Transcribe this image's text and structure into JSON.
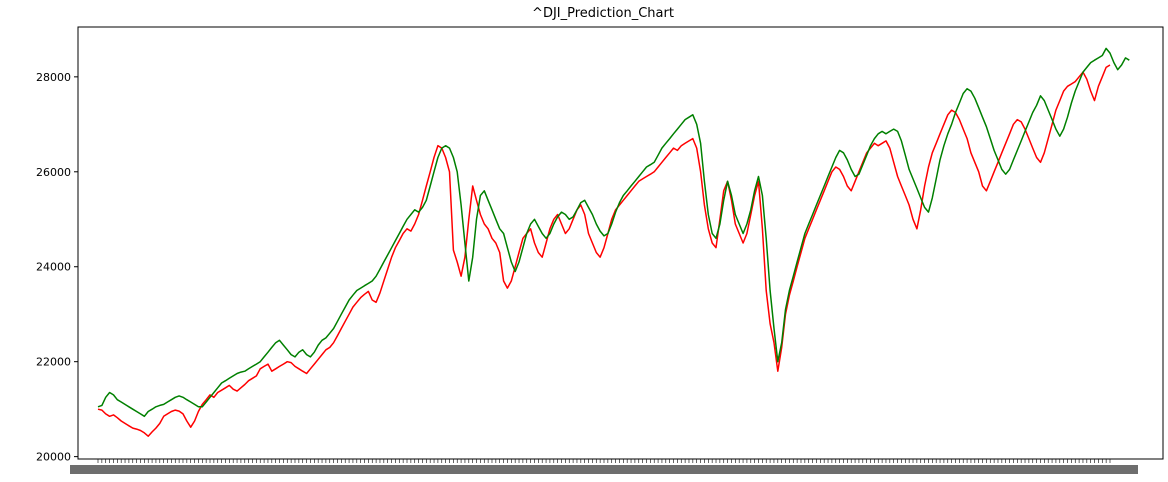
{
  "chart_data": {
    "type": "line",
    "title": "^DJI_Prediction_Chart",
    "xlabel": "",
    "ylabel": "",
    "ylim": [
      19950,
      29050
    ],
    "yticks": [
      20000,
      22000,
      24000,
      26000,
      28000
    ],
    "x_tick_labels_note": "dense overlapping date tick labels (illegible)",
    "grid": false,
    "legend": "none",
    "series": [
      {
        "color": "#ff0000",
        "values": [
          21000,
          20980,
          20900,
          20850,
          20880,
          20820,
          20750,
          20700,
          20650,
          20600,
          20580,
          20550,
          20500,
          20430,
          20520,
          20600,
          20700,
          20850,
          20900,
          20950,
          20980,
          20960,
          20900,
          20750,
          20620,
          20750,
          20950,
          21100,
          21200,
          21300,
          21250,
          21350,
          21400,
          21450,
          21500,
          21420,
          21380,
          21450,
          21520,
          21600,
          21650,
          21700,
          21850,
          21900,
          21950,
          21800,
          21850,
          21900,
          21950,
          22000,
          21980,
          21900,
          21850,
          21800,
          21750,
          21850,
          21950,
          22050,
          22150,
          22250,
          22300,
          22400,
          22550,
          22700,
          22850,
          23000,
          23150,
          23250,
          23350,
          23420,
          23480,
          23300,
          23250,
          23450,
          23700,
          23950,
          24200,
          24400,
          24550,
          24700,
          24800,
          24750,
          24900,
          25100,
          25400,
          25700,
          26000,
          26300,
          26550,
          26500,
          26300,
          26000,
          24350,
          24100,
          23800,
          24200,
          25000,
          25700,
          25400,
          25100,
          24900,
          24800,
          24600,
          24500,
          24300,
          23700,
          23550,
          23700,
          24000,
          24300,
          24600,
          24700,
          24800,
          24500,
          24300,
          24200,
          24500,
          24800,
          25000,
          25100,
          24900,
          24700,
          24800,
          25000,
          25200,
          25300,
          25100,
          24700,
          24500,
          24300,
          24200,
          24400,
          24700,
          25000,
          25200,
          25300,
          25400,
          25500,
          25600,
          25700,
          25800,
          25850,
          25900,
          25950,
          26000,
          26100,
          26200,
          26300,
          26400,
          26500,
          26450,
          26550,
          26600,
          26650,
          26700,
          26500,
          26000,
          25300,
          24800,
          24500,
          24400,
          25000,
          25600,
          25800,
          25400,
          24900,
          24700,
          24500,
          24700,
          25100,
          25500,
          25800,
          24800,
          23500,
          22800,
          22400,
          21800,
          22300,
          23000,
          23400,
          23700,
          24000,
          24300,
          24600,
          24800,
          25000,
          25200,
          25400,
          25600,
          25800,
          26000,
          26100,
          26050,
          25900,
          25700,
          25600,
          25800,
          26000,
          26200,
          26400,
          26500,
          26600,
          26550,
          26600,
          26650,
          26500,
          26200,
          25900,
          25700,
          25500,
          25300,
          25000,
          24800,
          25200,
          25700,
          26100,
          26400,
          26600,
          26800,
          27000,
          27200,
          27300,
          27250,
          27100,
          26900,
          26700,
          26400,
          26200,
          26000,
          25700,
          25600,
          25800,
          26000,
          26200,
          26400,
          26600,
          26800,
          27000,
          27100,
          27050,
          26900,
          26700,
          26500,
          26300,
          26200,
          26400,
          26700,
          27000,
          27300,
          27500,
          27700,
          27800,
          27850,
          27900,
          28000,
          28100,
          27950,
          27700,
          27500,
          27800,
          28000,
          28200,
          28250
        ]
      },
      {
        "color": "#008000",
        "values": [
          21050,
          21080,
          21250,
          21350,
          21300,
          21200,
          21150,
          21100,
          21050,
          21000,
          20950,
          20900,
          20850,
          20950,
          21000,
          21050,
          21080,
          21100,
          21150,
          21200,
          21250,
          21280,
          21250,
          21200,
          21150,
          21100,
          21050,
          21050,
          21150,
          21250,
          21350,
          21450,
          21550,
          21600,
          21650,
          21700,
          21750,
          21780,
          21800,
          21850,
          21900,
          21950,
          22000,
          22100,
          22200,
          22300,
          22400,
          22450,
          22350,
          22250,
          22150,
          22100,
          22200,
          22250,
          22150,
          22100,
          22200,
          22350,
          22450,
          22500,
          22600,
          22700,
          22850,
          23000,
          23150,
          23300,
          23400,
          23500,
          23550,
          23600,
          23650,
          23700,
          23800,
          23950,
          24100,
          24250,
          24400,
          24550,
          24700,
          24850,
          25000,
          25100,
          25200,
          25150,
          25250,
          25400,
          25700,
          26000,
          26300,
          26500,
          26550,
          26500,
          26300,
          26000,
          25300,
          24500,
          23700,
          24200,
          25000,
          25500,
          25600,
          25400,
          25200,
          25000,
          24800,
          24700,
          24400,
          24100,
          23900,
          24100,
          24400,
          24700,
          24900,
          25000,
          24850,
          24700,
          24600,
          24700,
          24900,
          25050,
          25150,
          25100,
          25000,
          25050,
          25200,
          25350,
          25400,
          25250,
          25100,
          24900,
          24750,
          24650,
          24700,
          24900,
          25150,
          25350,
          25500,
          25600,
          25700,
          25800,
          25900,
          26000,
          26100,
          26150,
          26200,
          26350,
          26500,
          26600,
          26700,
          26800,
          26900,
          27000,
          27100,
          27150,
          27200,
          27000,
          26600,
          25800,
          25100,
          24700,
          24600,
          24900,
          25400,
          25800,
          25500,
          25100,
          24900,
          24700,
          24900,
          25200,
          25600,
          25900,
          25500,
          24600,
          23500,
          22700,
          22000,
          22400,
          23100,
          23500,
          23800,
          24100,
          24400,
          24700,
          24900,
          25100,
          25300,
          25500,
          25700,
          25900,
          26100,
          26300,
          26450,
          26400,
          26250,
          26050,
          25900,
          25950,
          26150,
          26350,
          26550,
          26700,
          26800,
          26850,
          26800,
          26850,
          26900,
          26850,
          26650,
          26350,
          26050,
          25850,
          25650,
          25450,
          25250,
          25150,
          25450,
          25850,
          26250,
          26550,
          26800,
          27000,
          27250,
          27450,
          27650,
          27750,
          27700,
          27550,
          27350,
          27150,
          26950,
          26700,
          26450,
          26250,
          26050,
          25950,
          26050,
          26250,
          26450,
          26650,
          26850,
          27050,
          27250,
          27400,
          27600,
          27500,
          27300,
          27100,
          26900,
          26750,
          26900,
          27150,
          27450,
          27700,
          27900,
          28100,
          28200,
          28300,
          28350,
          28400,
          28450,
          28600,
          28500,
          28300,
          28150,
          28250,
          28400,
          28350
        ]
      }
    ]
  }
}
